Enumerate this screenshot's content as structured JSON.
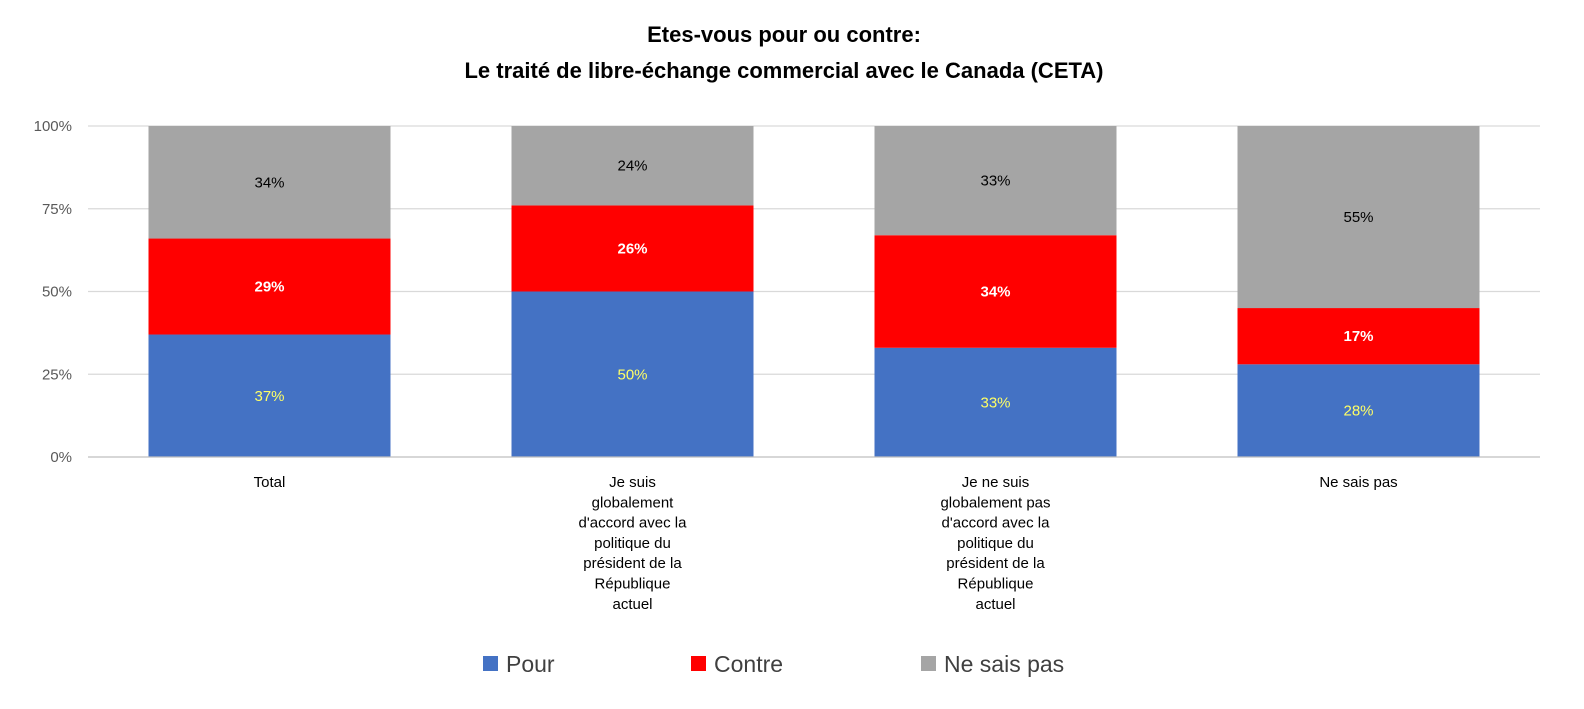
{
  "chart_data": {
    "type": "bar",
    "stacked": true,
    "title_lines": [
      "Etes-vous pour ou contre:",
      "Le traité de libre-échange commercial avec le Canada (CETA)"
    ],
    "categories": [
      [
        "Total"
      ],
      [
        "Je suis",
        "globalement",
        "d'accord avec la",
        "politique du",
        "président de la",
        "République",
        "actuel"
      ],
      [
        "Je ne suis",
        "globalement pas",
        "d'accord avec la",
        "politique du",
        "président de la",
        "République",
        "actuel"
      ],
      [
        "Ne sais pas"
      ]
    ],
    "series": [
      {
        "name": "Pour",
        "color": "#4472C4",
        "label_color": "#FFFF66",
        "label_bold": false,
        "values": [
          37,
          50,
          33,
          28
        ],
        "labels": [
          "37%",
          "50%",
          "33%",
          "28%"
        ]
      },
      {
        "name": "Contre",
        "color": "#FF0000",
        "label_color": "#FFFFFF",
        "label_bold": true,
        "values": [
          29,
          26,
          34,
          17
        ],
        "labels": [
          "29%",
          "26%",
          "34%",
          "17%"
        ]
      },
      {
        "name": "Ne sais pas",
        "color": "#A5A5A5",
        "label_color": "#000000",
        "label_bold": false,
        "values": [
          34,
          24,
          33,
          55
        ],
        "labels": [
          "34%",
          "24%",
          "33%",
          "55%"
        ]
      }
    ],
    "y_ticks": [
      0,
      25,
      50,
      75,
      100
    ],
    "y_tick_labels": [
      "0%",
      "25%",
      "50%",
      "75%",
      "100%"
    ],
    "ylim": [
      0,
      100
    ],
    "grid": true,
    "gridline_color": "#D9D9D9",
    "legend_position": "bottom"
  }
}
